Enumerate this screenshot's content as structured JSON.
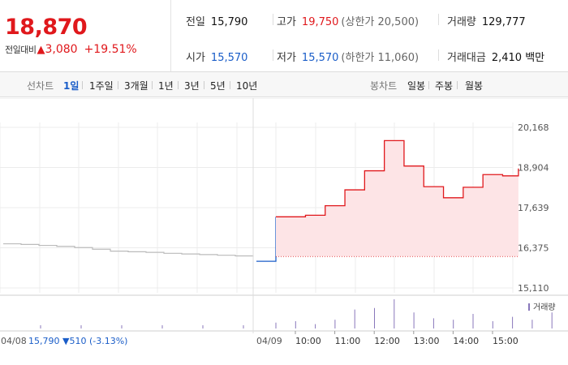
{
  "summary": {
    "price": "18,870",
    "change_label": "전일대비",
    "change_arrow": "▲",
    "change_value": "3,080",
    "change_pct": "+19.51%"
  },
  "stats": {
    "prev_close_label": "전일",
    "prev_close": "15,790",
    "high_label": "고가",
    "high": "19,750",
    "upper_limit": "(상한가 20,500)",
    "volume_label": "거래량",
    "volume": "129,777",
    "open_label": "시가",
    "open": "15,570",
    "low_label": "저가",
    "low": "15,570",
    "lower_limit": "(하한가 11,060)",
    "amount_label": "거래대금",
    "amount": "2,410 백만"
  },
  "tabs": {
    "line_label": "선차트",
    "line_items": [
      "1일",
      "1주일",
      "3개월",
      "1년",
      "3년",
      "5년",
      "10년"
    ],
    "active_line": "1일",
    "candle_label": "봉차트",
    "candle_items": [
      "일봉",
      "주봉",
      "월봉"
    ]
  },
  "colors": {
    "up": "#e0181c",
    "down": "#1a5dc8",
    "prev_line": "#bbbbbb",
    "fill_up": "#fde4e6",
    "volume_bar": "#8877bb"
  },
  "chart_data": {
    "type": "line",
    "y_ticks": [
      "20,168",
      "18,904",
      "17,639",
      "16,375",
      "15,110"
    ],
    "ylim": [
      15110,
      20168
    ],
    "grid": true,
    "prev_day": {
      "label": "04/08",
      "info": "15,790 ▼510 (-3.13%)",
      "values": [
        16500,
        16480,
        16450,
        16420,
        16380,
        16330,
        16270,
        16250,
        16230,
        16200,
        16180,
        16160,
        16140,
        16120,
        16100
      ]
    },
    "today": {
      "label": "04/09",
      "x_labels": [
        "10:00",
        "11:00",
        "12:00",
        "13:00",
        "14:00",
        "15:00"
      ],
      "steps": [
        {
          "t": 0.0,
          "v": 15950
        },
        {
          "t": 0.5,
          "v": 15950
        },
        {
          "t": 0.5,
          "v": 17350
        },
        {
          "t": 1.5,
          "v": 17400
        },
        {
          "t": 2.5,
          "v": 17700
        },
        {
          "t": 3.5,
          "v": 18200
        },
        {
          "t": 4.5,
          "v": 18800
        },
        {
          "t": 5.5,
          "v": 19750
        },
        {
          "t": 6.5,
          "v": 18950
        },
        {
          "t": 7.5,
          "v": 18300
        },
        {
          "t": 8.5,
          "v": 17950
        },
        {
          "t": 9.5,
          "v": 18280
        },
        {
          "t": 10.5,
          "v": 18680
        },
        {
          "t": 11.5,
          "v": 18640
        },
        {
          "t": 12.3,
          "v": 18870
        }
      ],
      "base": 16100
    },
    "volume_legend": "거래량",
    "volume_bars": [
      {
        "slot": 0,
        "v": 0.2
      },
      {
        "slot": 1,
        "v": 0.25
      },
      {
        "slot": 2,
        "v": 0.15
      },
      {
        "slot": 3,
        "v": 0.3
      },
      {
        "slot": 4,
        "v": 0.65
      },
      {
        "slot": 5,
        "v": 0.7
      },
      {
        "slot": 6,
        "v": 1.0
      },
      {
        "slot": 7,
        "v": 0.55
      },
      {
        "slot": 8,
        "v": 0.35
      },
      {
        "slot": 9,
        "v": 0.3
      },
      {
        "slot": 10,
        "v": 0.5
      },
      {
        "slot": 11,
        "v": 0.25
      },
      {
        "slot": 12,
        "v": 0.4
      },
      {
        "slot": 13,
        "v": 0.3
      },
      {
        "slot": 14,
        "v": 0.55
      }
    ]
  }
}
